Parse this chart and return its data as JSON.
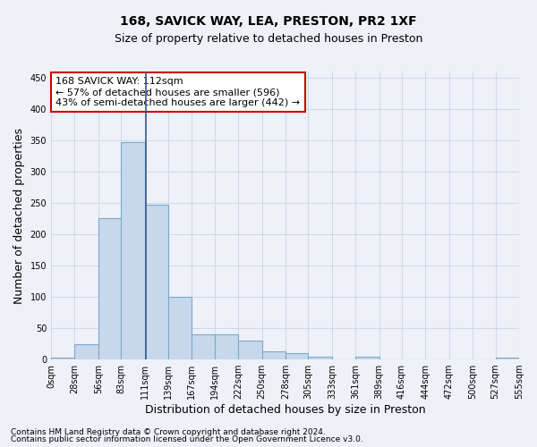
{
  "title1": "168, SAVICK WAY, LEA, PRESTON, PR2 1XF",
  "title2": "Size of property relative to detached houses in Preston",
  "xlabel": "Distribution of detached houses by size in Preston",
  "ylabel": "Number of detached properties",
  "footer1": "Contains HM Land Registry data © Crown copyright and database right 2024.",
  "footer2": "Contains public sector information licensed under the Open Government Licence v3.0.",
  "bin_edges": [
    0,
    28,
    56,
    83,
    111,
    139,
    167,
    194,
    222,
    250,
    278,
    305,
    333,
    361,
    389,
    416,
    444,
    472,
    500,
    527,
    555
  ],
  "bar_heights": [
    3,
    25,
    226,
    347,
    247,
    100,
    40,
    40,
    30,
    13,
    10,
    4,
    0,
    4,
    0,
    0,
    0,
    0,
    0,
    3
  ],
  "bar_color": "#c8d8ec",
  "bar_edge_color": "#7aaac8",
  "vline_x": 112,
  "vline_color": "#3a5a8a",
  "annotation_text": "168 SAVICK WAY: 112sqm\n← 57% of detached houses are smaller (596)\n43% of semi-detached houses are larger (442) →",
  "annotation_box_color": "#ffffff",
  "annotation_border_color": "#cc0000",
  "ylim": [
    0,
    460
  ],
  "xlim": [
    0,
    555
  ],
  "tick_labels": [
    "0sqm",
    "28sqm",
    "56sqm",
    "83sqm",
    "111sqm",
    "139sqm",
    "167sqm",
    "194sqm",
    "222sqm",
    "250sqm",
    "278sqm",
    "305sqm",
    "333sqm",
    "361sqm",
    "389sqm",
    "416sqm",
    "444sqm",
    "472sqm",
    "500sqm",
    "527sqm",
    "555sqm"
  ],
  "grid_color": "#d0d8ec",
  "bg_color": "#eef2f8",
  "title_fontsize": 10,
  "subtitle_fontsize": 9,
  "ylabel_fontsize": 9,
  "xlabel_fontsize": 9,
  "tick_fontsize": 7,
  "footer_fontsize": 6.5,
  "annot_fontsize": 8
}
